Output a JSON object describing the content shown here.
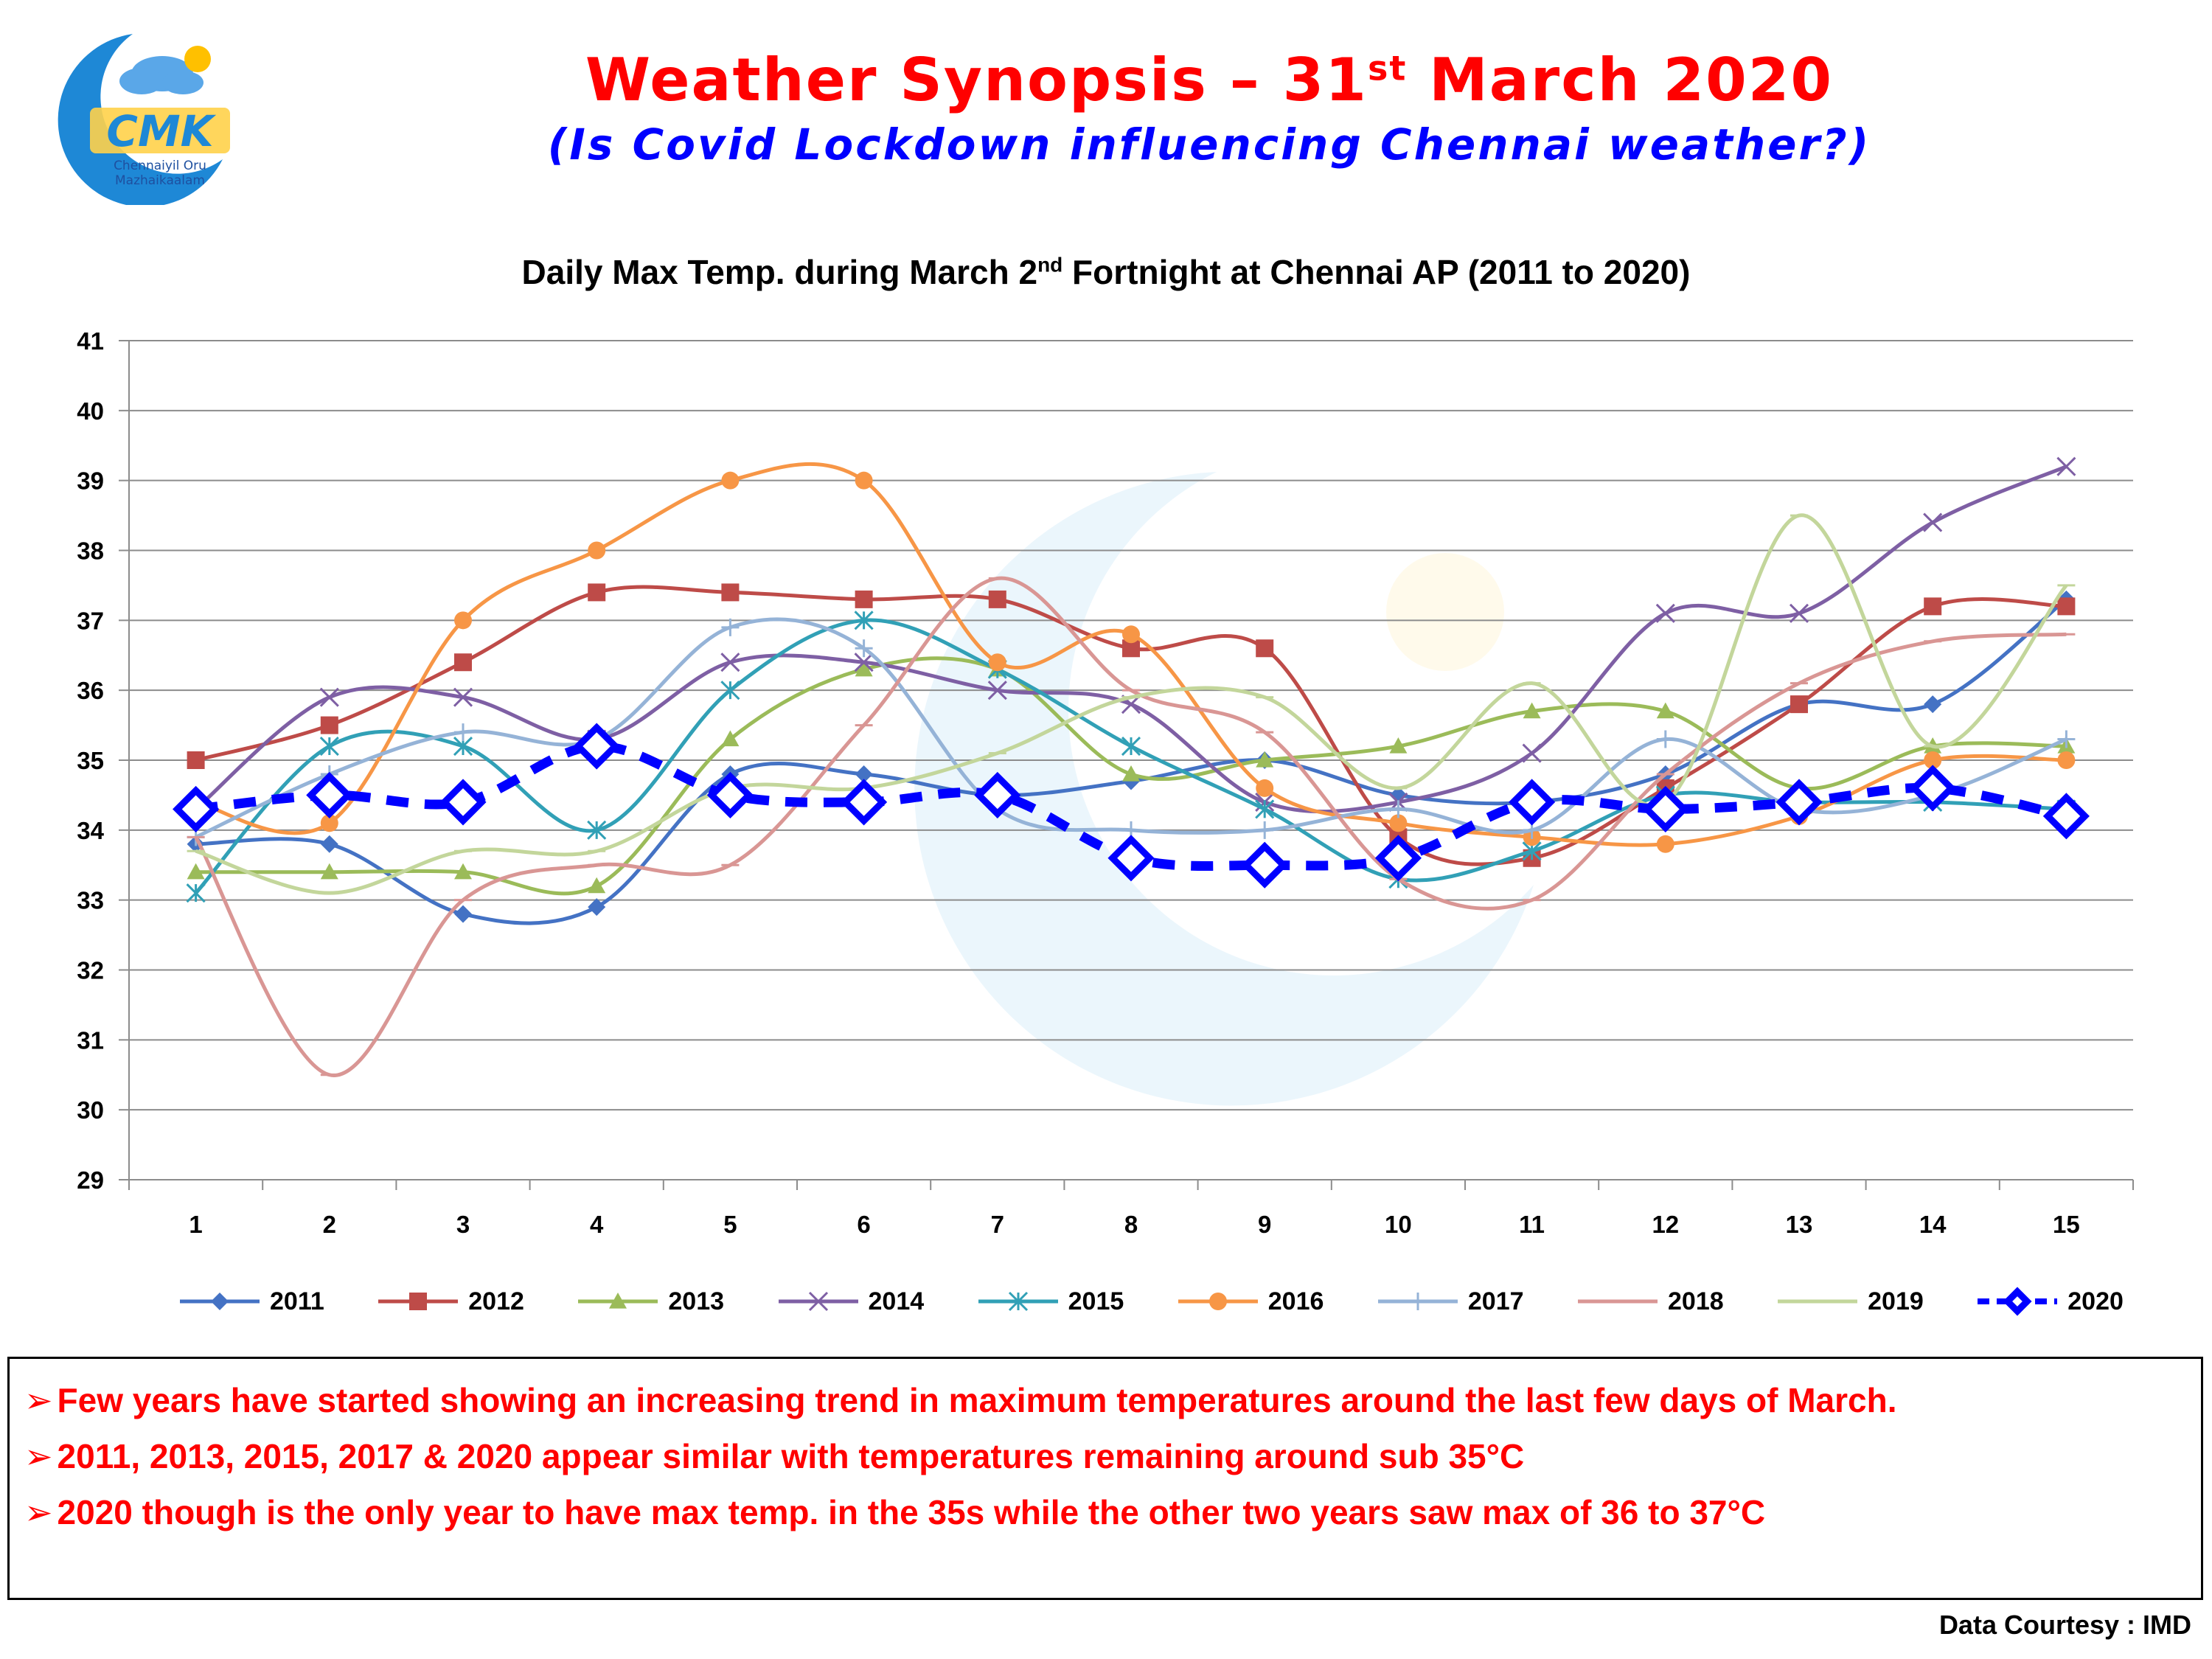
{
  "header": {
    "title_main": "Weather Synopsis – 31",
    "title_sup": "st",
    "title_end": " March 2020",
    "subtitle": "(Is Covid Lockdown influencing Chennai weather?)",
    "logo_text": "CMK",
    "logo_subtext_1": "Chennaiyil Oru",
    "logo_subtext_2": "Mazhaikaalam"
  },
  "chart_header": {
    "pre": "Daily Max Temp. during March 2",
    "sup": "nd",
    "post": " Fortnight at Chennai AP (2011 to 2020)"
  },
  "chart_data": {
    "type": "line",
    "title": "Daily Max Temp. during March 2nd Fortnight at Chennai AP (2011 to 2020)",
    "x": [
      1,
      2,
      3,
      4,
      5,
      6,
      7,
      8,
      9,
      10,
      11,
      12,
      13,
      14,
      15
    ],
    "ylim": [
      29,
      41
    ],
    "yticks": [
      29,
      30,
      31,
      32,
      33,
      34,
      35,
      36,
      37,
      38,
      39,
      40,
      41
    ],
    "grid": true,
    "legend_position": "bottom",
    "series": [
      {
        "name": "2011",
        "color": "#4472c4",
        "marker": "diamond",
        "values": [
          33.8,
          33.8,
          32.8,
          32.9,
          34.8,
          34.8,
          34.5,
          34.7,
          35.0,
          34.5,
          34.4,
          34.8,
          35.8,
          35.8,
          37.3
        ]
      },
      {
        "name": "2012",
        "color": "#be4b48",
        "marker": "square",
        "values": [
          35.0,
          35.5,
          36.4,
          37.4,
          37.4,
          37.3,
          37.3,
          36.6,
          36.6,
          33.9,
          33.6,
          34.6,
          35.8,
          37.2,
          37.2
        ]
      },
      {
        "name": "2013",
        "color": "#9bbb59",
        "marker": "triangle",
        "values": [
          33.4,
          33.4,
          33.4,
          33.2,
          35.3,
          36.3,
          36.3,
          34.8,
          35.0,
          35.2,
          35.7,
          35.7,
          34.6,
          35.2,
          35.2
        ]
      },
      {
        "name": "2014",
        "color": "#7e5fa4",
        "marker": "x",
        "values": [
          34.3,
          35.9,
          35.9,
          35.3,
          36.4,
          36.4,
          36.0,
          35.8,
          34.4,
          34.4,
          35.1,
          37.1,
          37.1,
          38.4,
          39.2
        ]
      },
      {
        "name": "2015",
        "color": "#31a0b6",
        "marker": "star",
        "values": [
          33.1,
          35.2,
          35.2,
          34.0,
          36.0,
          37.0,
          36.3,
          35.2,
          34.3,
          33.3,
          33.7,
          34.5,
          34.4,
          34.4,
          34.3
        ]
      },
      {
        "name": "2016",
        "color": "#f79646",
        "marker": "circle",
        "values": [
          34.4,
          34.1,
          37.0,
          38.0,
          39.0,
          39.0,
          36.4,
          36.8,
          34.6,
          34.1,
          33.9,
          33.8,
          34.2,
          35.0,
          35.0
        ]
      },
      {
        "name": "2017",
        "color": "#95b3d7",
        "marker": "plus",
        "values": [
          33.9,
          34.8,
          35.4,
          35.3,
          36.9,
          36.6,
          34.3,
          34.0,
          34.0,
          34.3,
          34.0,
          35.3,
          34.3,
          34.5,
          35.3
        ]
      },
      {
        "name": "2018",
        "color": "#d99694",
        "marker": "dash",
        "values": [
          33.9,
          30.5,
          33.0,
          33.5,
          33.5,
          35.5,
          37.6,
          36.0,
          35.4,
          33.3,
          33.0,
          34.8,
          36.1,
          36.7,
          36.8
        ]
      },
      {
        "name": "2019",
        "color": "#c3d69b",
        "marker": "dash",
        "values": [
          33.7,
          33.1,
          33.7,
          33.7,
          34.6,
          34.6,
          35.1,
          35.9,
          35.9,
          34.6,
          36.1,
          34.4,
          38.5,
          35.2,
          37.5
        ]
      },
      {
        "name": "2020",
        "color": "#0000ff",
        "marker": "bigdiamond",
        "dashed": true,
        "values": [
          34.3,
          34.5,
          34.4,
          35.2,
          34.5,
          34.4,
          34.5,
          33.6,
          33.5,
          33.6,
          34.4,
          34.3,
          34.4,
          34.6,
          34.2
        ]
      }
    ]
  },
  "notes": [
    "Few years have started showing an increasing trend in maximum temperatures around the last few days of March.",
    "2011, 2013, 2015, 2017 & 2020 appear similar with temperatures remaining around sub 35°C",
    "2020 though is the only year to have max temp. in the 35s while the other two years saw max of 36 to 37°C"
  ],
  "footer": {
    "courtesy": "Data Courtesy : IMD"
  }
}
